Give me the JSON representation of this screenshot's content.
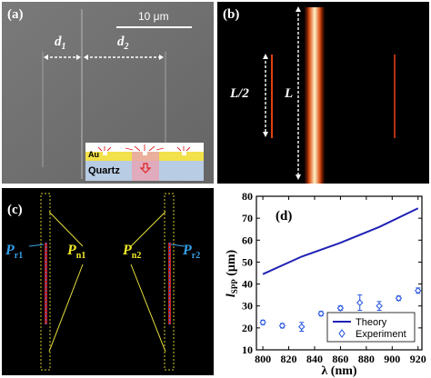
{
  "panel_a": {
    "label": "(a)",
    "scale_bar": "10 μm",
    "d1": "d",
    "d1_sub": "1",
    "d2": "d",
    "d2_sub": "2",
    "inset_au": "Au",
    "inset_quartz": "Quartz"
  },
  "panel_b": {
    "label": "(b)",
    "half_length": "L/2",
    "length": "L"
  },
  "panel_c": {
    "label": "(c)",
    "pr1": "P",
    "pr1_sub": "r1",
    "pn1": "P",
    "pn1_sub": "n1",
    "pn2": "P",
    "pn2_sub": "n2",
    "pr2": "P",
    "pr2_sub": "r2"
  },
  "panel_d": {
    "label": "(d)"
  },
  "colors": {
    "theory": "#1f22b5",
    "experiment": "#2050e0",
    "cyan_label": "#34a0e8",
    "yellow_label": "#f2ea2a"
  },
  "chart_data": {
    "type": "line",
    "xlabel": "λ (nm)",
    "ylabel": "l",
    "ylabel_sub": "SPP",
    "ylabel_unit": " (μm)",
    "xlim": [
      795,
      923
    ],
    "ylim": [
      10,
      80
    ],
    "xticks": [
      800,
      820,
      840,
      860,
      880,
      900,
      920
    ],
    "yticks": [
      10,
      20,
      30,
      40,
      50,
      60,
      70,
      80
    ],
    "legend_position": "bottom-right",
    "series": [
      {
        "name": "Theory",
        "style": "line",
        "x": [
          800,
          830,
          860,
          890,
          920
        ],
        "y": [
          44.5,
          52.5,
          58.8,
          66,
          74.5
        ]
      },
      {
        "name": "Experiment",
        "style": "markers-errorbars",
        "x": [
          800,
          815,
          830,
          845,
          860,
          875,
          890,
          905,
          920
        ],
        "y": [
          22.5,
          21,
          20.5,
          26.5,
          29,
          31.5,
          30,
          33.5,
          37
        ],
        "err": [
          1,
          1,
          2,
          1,
          1,
          3.5,
          2,
          1,
          1.2
        ]
      }
    ]
  }
}
